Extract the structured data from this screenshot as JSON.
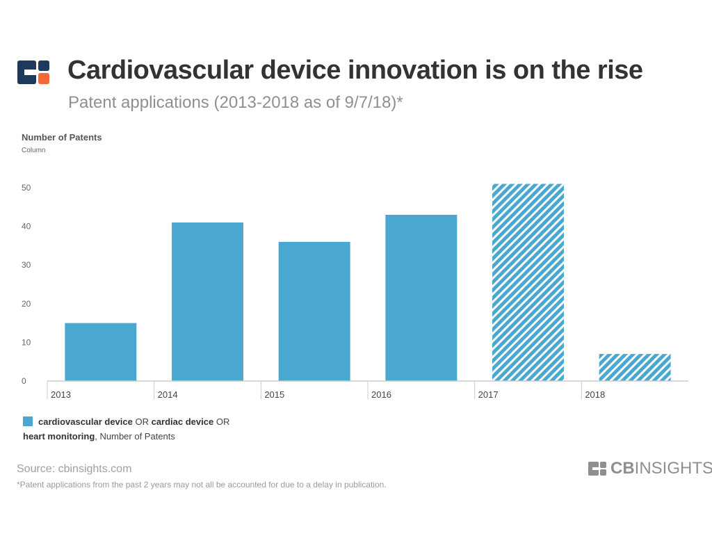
{
  "header": {
    "title": "Cardiovascular device innovation is on the rise",
    "subtitle": "Patent applications (2013-2018  as of 9/7/18)*"
  },
  "chart_data": {
    "type": "bar",
    "ytitle": "Number of Patents",
    "ysubtitle": "Column",
    "categories": [
      "2013",
      "2014",
      "2015",
      "2016",
      "2017",
      "2018"
    ],
    "series": [
      {
        "name": "cardiovascular device OR cardiac device OR heart monitoring, Number of Patents",
        "values": [
          15,
          41,
          36,
          43,
          51,
          7
        ]
      }
    ],
    "hatched_categories": [
      "2017",
      "2018"
    ],
    "ylim": [
      0,
      50
    ],
    "yticks": [
      "0",
      "10",
      "20",
      "30",
      "40",
      "50"
    ],
    "grid": false,
    "legend_position": "bottom-left",
    "bar_color": "#4aa8d0"
  },
  "legend": {
    "part1": "cardiovascular device",
    "op1": " OR ",
    "part2": "cardiac device",
    "op2": " OR ",
    "part3": "heart monitoring",
    "tail": ", Number of Patents"
  },
  "footer": {
    "source": "Source: cbinsights.com",
    "footnote": "*Patent applications from the past 2 years may not all be accounted for due to a delay in publication.",
    "brand_cb": "CB",
    "brand_insights": "INSIGHTS"
  },
  "colors": {
    "logo_navy": "#1b3a5c",
    "logo_orange": "#f26a34",
    "title": "#333333"
  }
}
